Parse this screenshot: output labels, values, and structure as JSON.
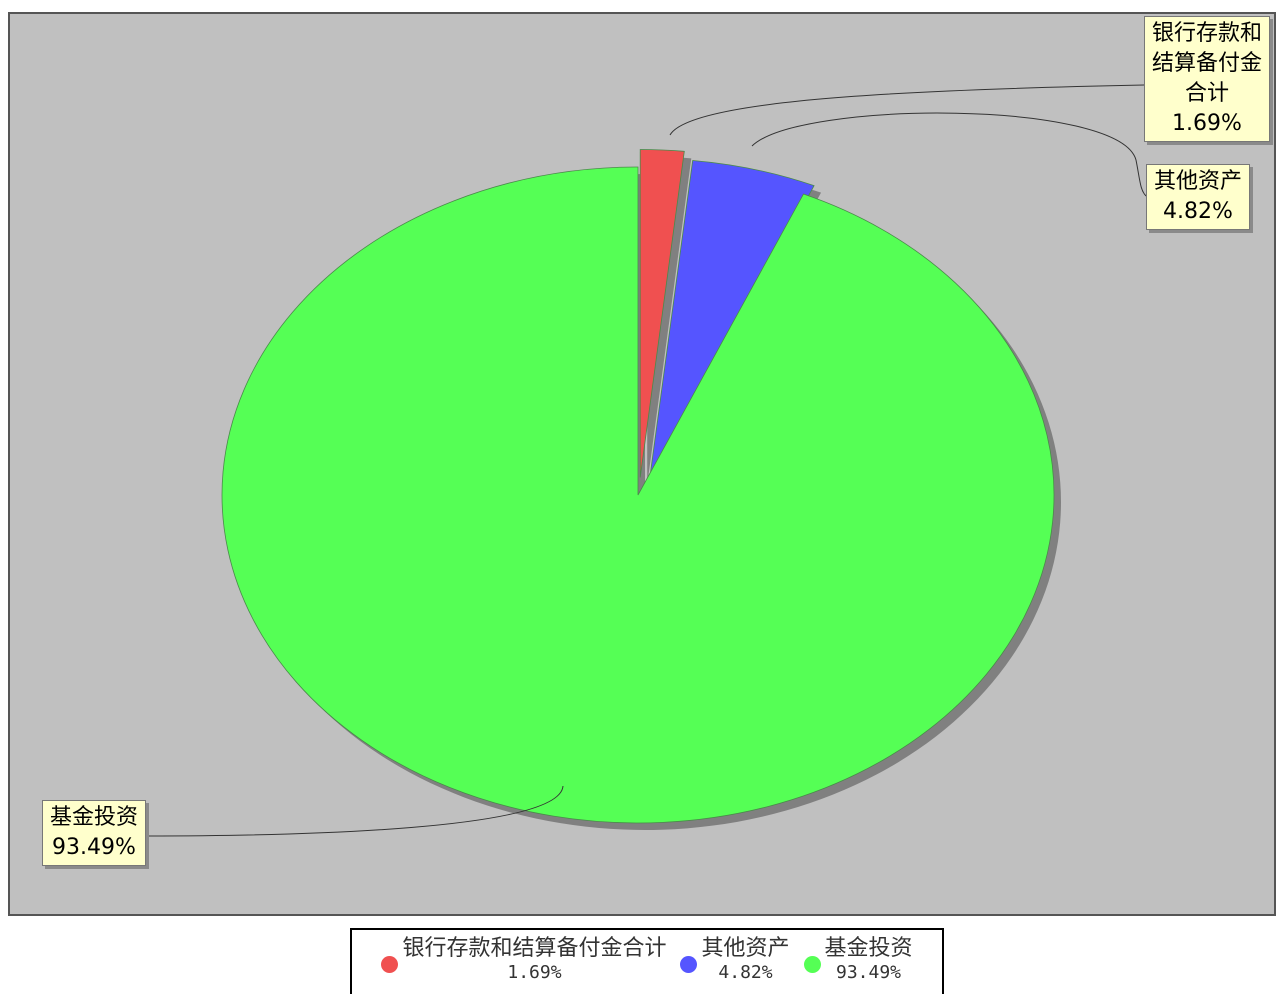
{
  "chart_data": {
    "type": "pie",
    "slices": [
      {
        "label": "银行存款和结算备付金合计",
        "value": 1.69,
        "value_label": "1.69%",
        "callout_lines": [
          "银行存款和",
          "结算备付金",
          "合计"
        ],
        "color": "#f05050",
        "exploded": true
      },
      {
        "label": "其他资产",
        "value": 4.82,
        "value_label": "4.82%",
        "callout_lines": [
          "其他资产"
        ],
        "color": "#5555ff",
        "exploded": true
      },
      {
        "label": "基金投资",
        "value": 93.49,
        "value_label": "93.49%",
        "callout_lines": [
          "基金投资"
        ],
        "color": "#55ff55",
        "exploded": false
      }
    ],
    "legend": [
      {
        "label": "银行存款和结算备付金合计",
        "value_label": "1.69%"
      },
      {
        "label": "其他资产",
        "value_label": "4.82%"
      },
      {
        "label": "基金投资",
        "value_label": "93.49%"
      }
    ],
    "legend_position": "bottom",
    "plot_background": "#c0c0c0",
    "callout_background": "#ffffcc"
  }
}
